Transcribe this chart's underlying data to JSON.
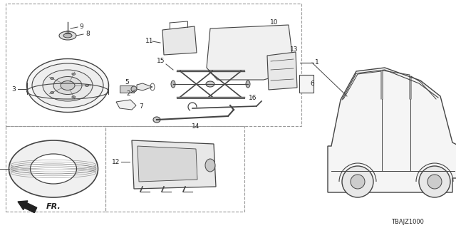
{
  "background_color": "#ffffff",
  "diagram_code": "TBAJZ1000",
  "fr_label": "FR.",
  "line_color": "#444444",
  "text_color": "#222222",
  "dashed_color": "#999999",
  "fig_w": 6.4,
  "fig_h": 3.2,
  "dpi": 100
}
